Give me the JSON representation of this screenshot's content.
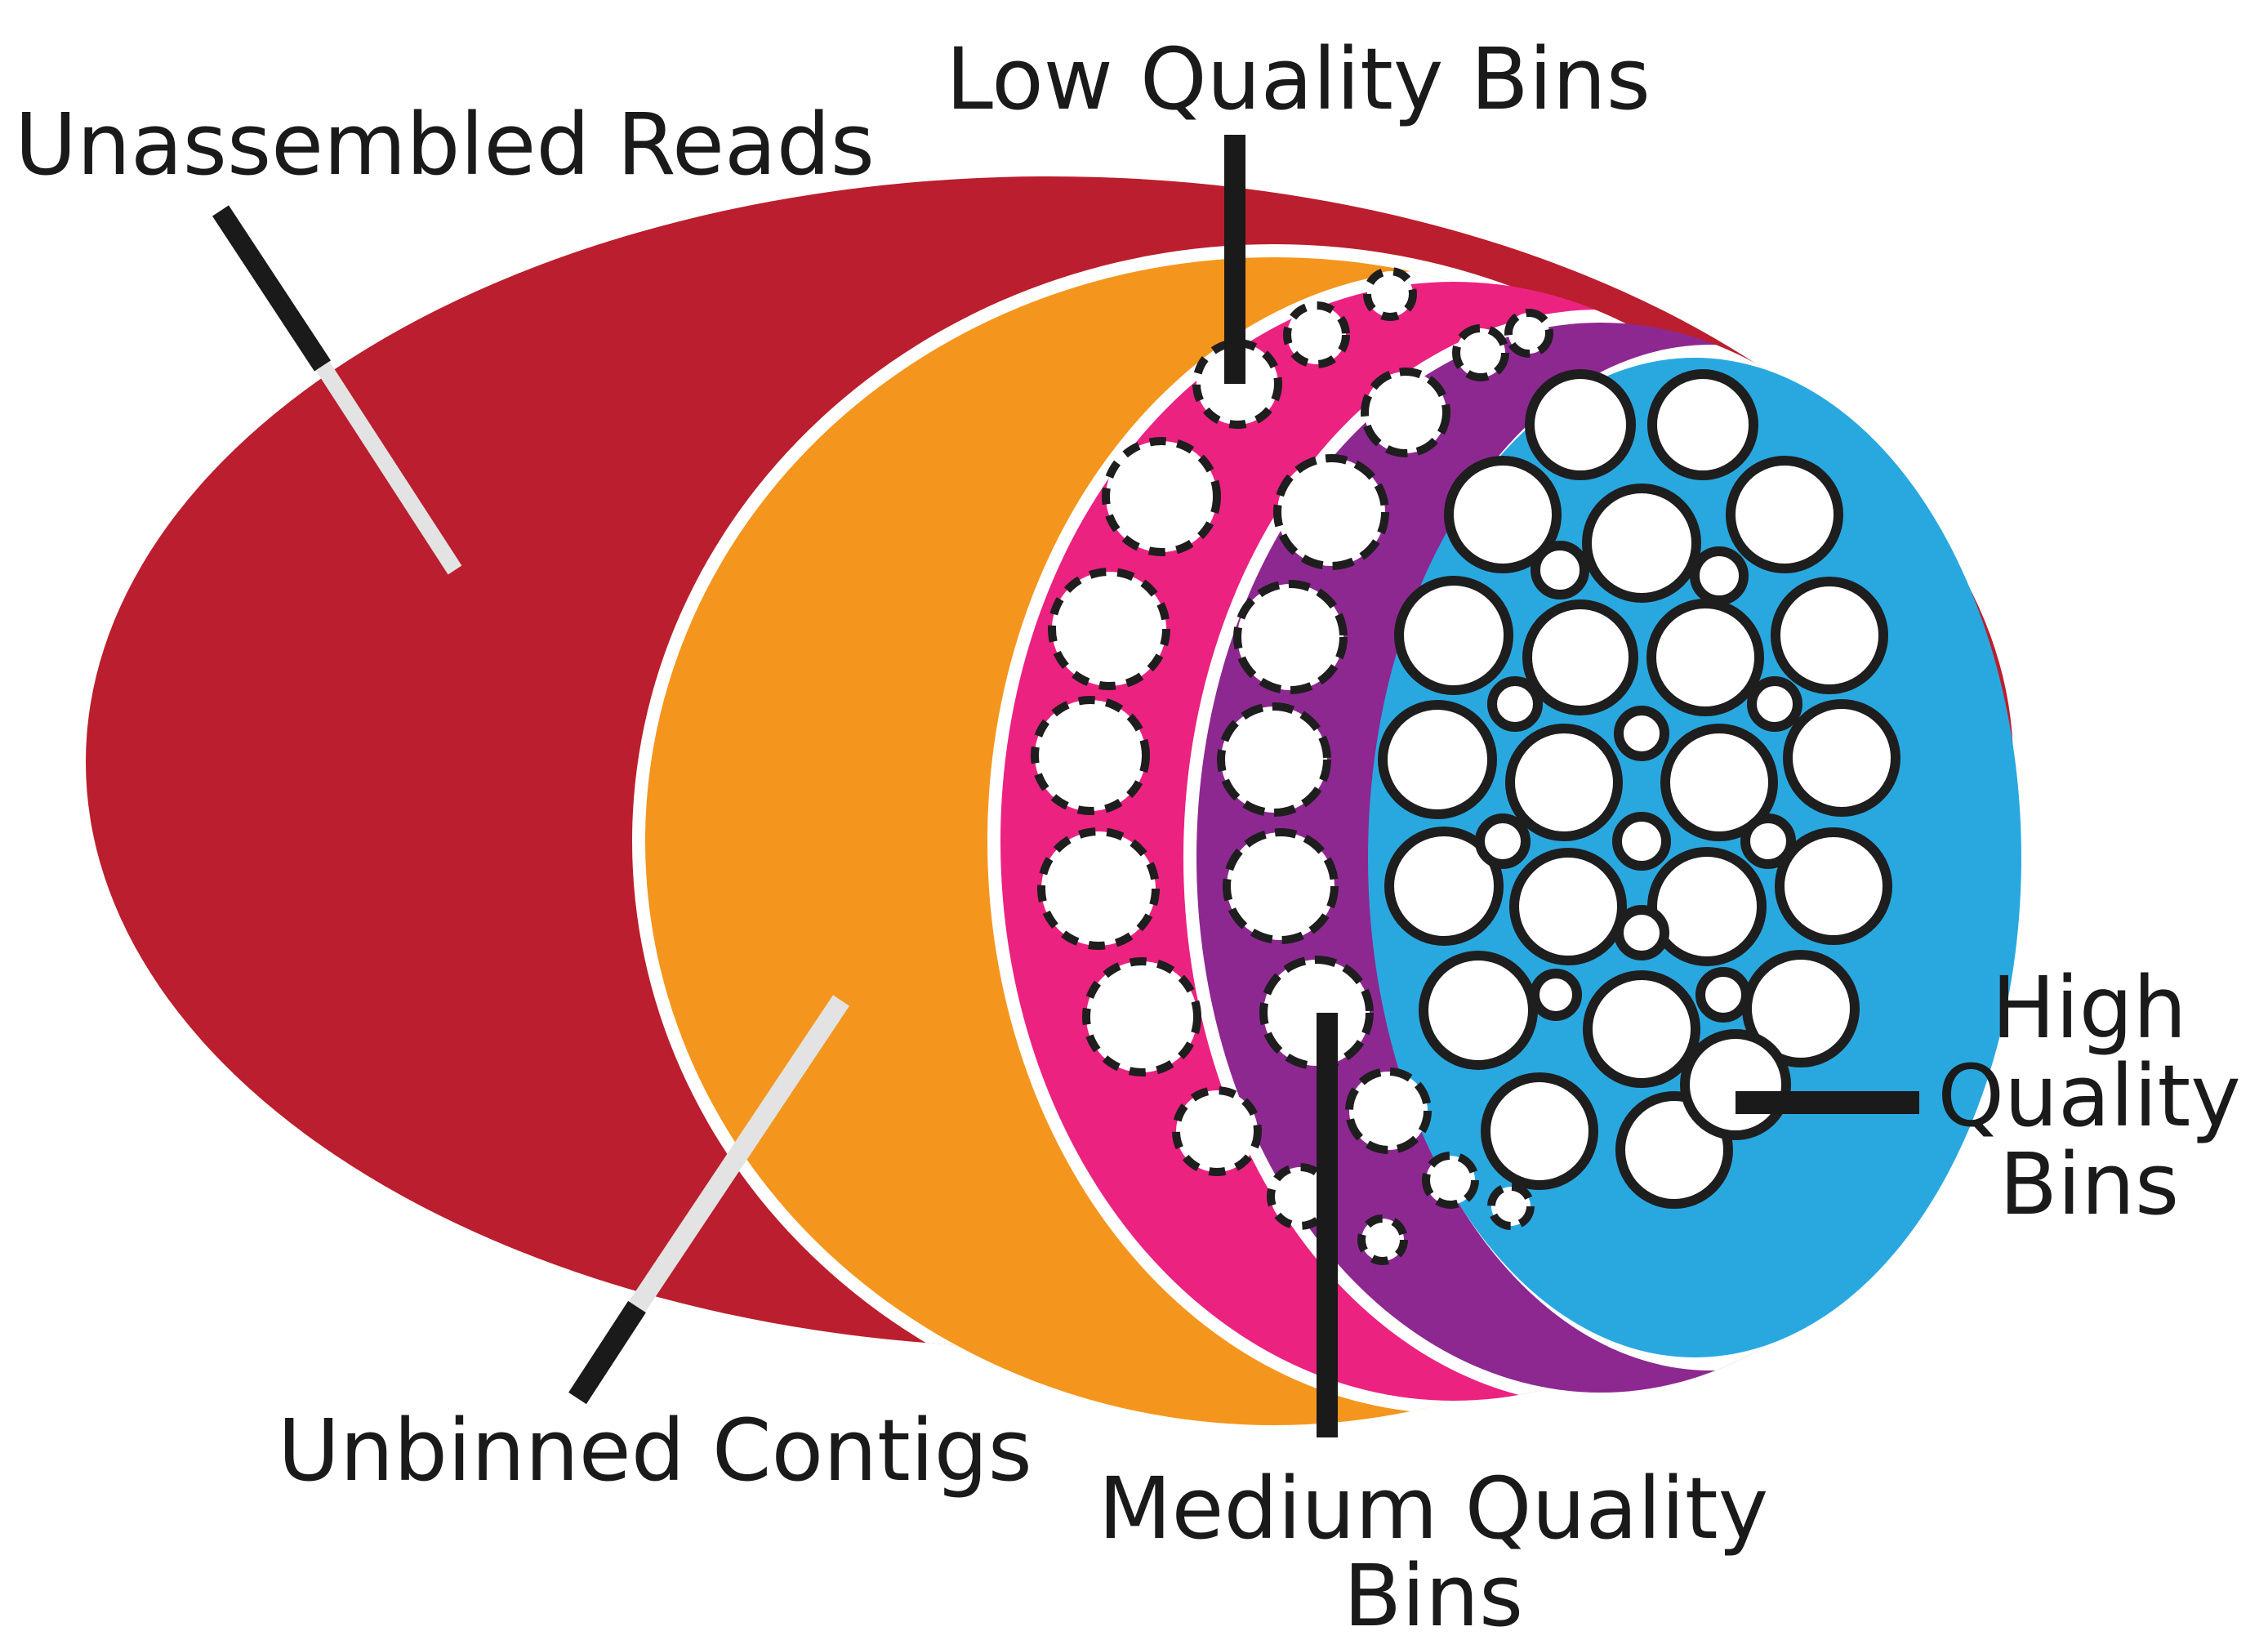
{
  "labels": {
    "unassembled_reads": "Unassembled Reads",
    "low_quality_bins": "Low Quality Bins",
    "unbinned_contigs": "Unbinned Contigs",
    "medium_quality_bins": {
      "line1": "Medium Quality",
      "line2": "Bins"
    },
    "high_quality_bins": {
      "line1": "High",
      "line2": "Quality",
      "line3": "Bins"
    }
  },
  "colors": {
    "unassembled_reads": "#bb1e2e",
    "unbinned_contigs": "#f4961e",
    "low_quality_bins": "#ec2280",
    "medium_quality_bins": "#8e2891",
    "high_quality_bins": "#29a8e0",
    "bin_fill": "#ffffff",
    "bin_outline": "#1e1e1e",
    "pointer_dark": "#1a1a1a",
    "pointer_light": "#e3e3e3"
  }
}
